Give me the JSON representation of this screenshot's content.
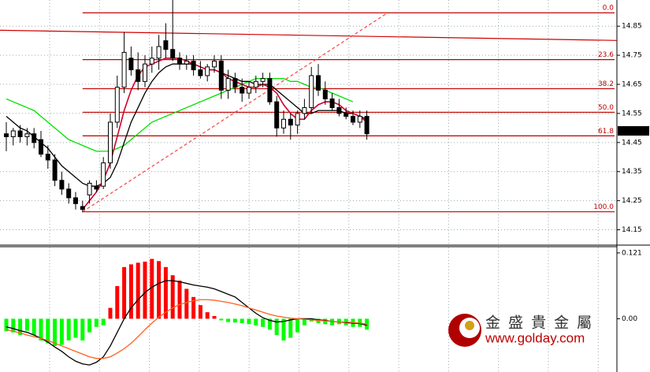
{
  "chart_data": [
    {
      "type": "candlestick",
      "ylim": [
        14.1,
        14.94
      ],
      "yticks": [
        14.15,
        14.25,
        14.35,
        14.45,
        14.55,
        14.65,
        14.75,
        14.85
      ],
      "grid": true,
      "open": [
        14.48,
        14.47,
        14.49,
        14.47,
        14.48,
        14.46,
        14.41,
        14.39,
        14.32,
        14.29,
        14.26,
        14.23,
        14.27,
        14.3,
        14.3,
        14.38,
        14.52,
        14.64,
        14.74,
        14.7,
        14.66,
        14.72,
        14.74,
        14.8,
        14.77,
        14.74,
        14.72,
        14.73,
        14.7,
        14.68,
        14.71,
        14.73,
        14.63,
        14.67,
        14.64,
        14.62,
        14.64,
        14.66,
        14.67,
        14.59,
        14.5,
        14.53,
        14.51,
        14.55,
        14.57,
        14.68,
        14.63,
        14.6,
        14.57,
        14.55,
        14.54,
        14.52,
        14.54
      ],
      "high": [
        14.52,
        14.5,
        14.51,
        14.5,
        14.5,
        14.49,
        14.44,
        14.41,
        14.35,
        14.31,
        14.28,
        14.25,
        14.32,
        14.32,
        14.4,
        14.55,
        14.68,
        14.83,
        14.78,
        14.76,
        14.75,
        14.78,
        14.82,
        14.86,
        14.94,
        14.76,
        14.75,
        14.75,
        14.73,
        14.72,
        14.75,
        14.75,
        14.7,
        14.69,
        14.67,
        14.66,
        14.68,
        14.69,
        14.69,
        14.61,
        14.56,
        14.55,
        14.56,
        14.6,
        14.71,
        14.72,
        14.66,
        14.62,
        14.6,
        14.57,
        14.56,
        14.56,
        14.56
      ],
      "low": [
        14.42,
        14.44,
        14.45,
        14.44,
        14.43,
        14.4,
        14.36,
        14.3,
        14.27,
        14.24,
        14.22,
        14.21,
        14.24,
        14.28,
        14.29,
        14.36,
        14.5,
        14.62,
        14.68,
        14.63,
        14.64,
        14.69,
        14.7,
        14.74,
        14.73,
        14.7,
        14.7,
        14.68,
        14.67,
        14.66,
        14.69,
        14.6,
        14.6,
        14.62,
        14.59,
        14.6,
        14.62,
        14.64,
        14.58,
        14.47,
        14.48,
        14.46,
        14.48,
        14.53,
        14.55,
        14.61,
        14.58,
        14.56,
        14.54,
        14.53,
        14.51,
        14.5,
        14.46
      ],
      "close": [
        14.47,
        14.49,
        14.47,
        14.48,
        14.45,
        14.41,
        14.39,
        14.32,
        14.29,
        14.26,
        14.24,
        14.22,
        14.31,
        14.29,
        14.38,
        14.52,
        14.64,
        14.76,
        14.7,
        14.66,
        14.72,
        14.74,
        14.78,
        14.77,
        14.74,
        14.72,
        14.73,
        14.7,
        14.68,
        14.71,
        14.73,
        14.63,
        14.67,
        14.64,
        14.62,
        14.64,
        14.66,
        14.67,
        14.59,
        14.5,
        14.53,
        14.51,
        14.55,
        14.57,
        14.68,
        14.63,
        14.6,
        14.57,
        14.55,
        14.54,
        14.52,
        14.54,
        14.48
      ],
      "lines": [
        {
          "color": "#00e000",
          "values": [
            14.6,
            14.59,
            14.58,
            14.57,
            14.56,
            14.54,
            14.52,
            14.5,
            14.48,
            14.46,
            14.45,
            14.44,
            14.43,
            14.42,
            14.42,
            14.42,
            14.43,
            14.44,
            14.46,
            14.48,
            14.5,
            14.52,
            14.53,
            14.54,
            14.55,
            14.56,
            14.57,
            14.58,
            14.59,
            14.6,
            14.61,
            14.62,
            14.63,
            14.64,
            14.65,
            14.66,
            14.67,
            14.67,
            14.67,
            14.67,
            14.67,
            14.66,
            14.66,
            14.65,
            14.64,
            14.64,
            14.63,
            14.62,
            14.61,
            14.6,
            14.59,
            null,
            null
          ]
        },
        {
          "color": "#000000",
          "values": [
            14.54,
            14.52,
            14.5,
            14.49,
            14.47,
            14.45,
            14.43,
            14.4,
            14.37,
            14.35,
            14.33,
            14.31,
            14.3,
            14.3,
            14.31,
            14.33,
            14.38,
            14.45,
            14.52,
            14.57,
            14.62,
            14.66,
            14.69,
            14.71,
            14.72,
            14.72,
            14.72,
            14.72,
            14.71,
            14.7,
            14.7,
            14.69,
            14.68,
            14.67,
            14.66,
            14.66,
            14.65,
            14.65,
            14.65,
            14.63,
            14.61,
            14.59,
            14.57,
            14.55,
            14.55,
            14.56,
            14.56,
            14.56,
            14.56,
            14.55,
            14.55,
            14.54,
            14.53
          ]
        },
        {
          "color": "#d0002a",
          "values": [
            null,
            null,
            null,
            null,
            null,
            null,
            null,
            null,
            null,
            null,
            null,
            14.22,
            14.25,
            14.28,
            14.32,
            14.38,
            14.47,
            14.56,
            14.63,
            14.68,
            14.71,
            14.72,
            14.73,
            14.74,
            14.74,
            14.74,
            14.73,
            14.72,
            14.71,
            14.7,
            14.7,
            14.69,
            14.67,
            14.66,
            14.65,
            14.64,
            14.64,
            14.65,
            14.64,
            14.62,
            14.58,
            14.55,
            14.53,
            14.53,
            14.56,
            14.58,
            14.59,
            14.59,
            14.58,
            14.56,
            14.55,
            14.54,
            14.52
          ]
        }
      ],
      "trendlines": [
        {
          "color": "#d00000",
          "dashed": false,
          "x": [
            -1,
            88
          ],
          "y": [
            14.836,
            14.801
          ]
        },
        {
          "color": "#ff4040",
          "dashed": true,
          "x": [
            11,
            55
          ],
          "y": [
            14.212,
            14.896
          ]
        }
      ],
      "fib_color": "#c00000",
      "fib_start": 11,
      "fib_levels": [
        {
          "label": "0.0",
          "price": 14.896
        },
        {
          "label": "23.6",
          "price": 14.735
        },
        {
          "label": "38.2",
          "price": 14.635
        },
        {
          "label": "50.0",
          "price": 14.554
        },
        {
          "label": "61.8",
          "price": 14.473
        },
        {
          "label": "100.0",
          "price": 14.212
        }
      ],
      "last_price": 14.49
    },
    {
      "type": "histogram",
      "ylim": [
        -0.095,
        0.131
      ],
      "yticks": [
        {
          "value": 0.121,
          "label": "0.121"
        },
        {
          "value": 0,
          "label": "0.00"
        }
      ],
      "positive_color": "#ff0000",
      "negative_color": "#00ff00",
      "values": [
        -0.023,
        -0.025,
        -0.03,
        -0.022,
        -0.03,
        -0.04,
        -0.045,
        -0.05,
        -0.048,
        -0.04,
        -0.035,
        -0.04,
        -0.025,
        -0.015,
        -0.012,
        0.02,
        0.06,
        0.095,
        0.1,
        0.103,
        0.105,
        0.11,
        0.106,
        0.095,
        0.08,
        0.07,
        0.055,
        0.04,
        0.025,
        0.012,
        0.005,
        -0.003,
        -0.006,
        -0.007,
        -0.008,
        -0.01,
        -0.012,
        -0.015,
        -0.02,
        -0.03,
        -0.04,
        -0.035,
        -0.025,
        -0.012,
        -0.005,
        -0.008,
        -0.01,
        -0.012,
        -0.01,
        -0.012,
        -0.015,
        -0.015,
        -0.02
      ],
      "lines": [
        {
          "color": "#000000",
          "values": [
            -0.015,
            -0.018,
            -0.022,
            -0.025,
            -0.03,
            -0.036,
            -0.043,
            -0.052,
            -0.06,
            -0.07,
            -0.078,
            -0.083,
            -0.085,
            -0.08,
            -0.07,
            -0.05,
            -0.025,
            0.0,
            0.02,
            0.035,
            0.048,
            0.058,
            0.065,
            0.07,
            0.07,
            0.068,
            0.065,
            0.062,
            0.06,
            0.058,
            0.055,
            0.05,
            0.045,
            0.04,
            0.03,
            0.02,
            0.01,
            0.002,
            -0.003,
            -0.006,
            -0.005,
            -0.002,
            0.0,
            0.0,
            0.0,
            -0.002,
            -0.003,
            -0.005,
            -0.006,
            -0.007,
            -0.008,
            -0.009,
            -0.012
          ]
        },
        {
          "color": "#ff6020",
          "values": [
            -0.02,
            -0.023,
            -0.026,
            -0.03,
            -0.033,
            -0.036,
            -0.04,
            -0.045,
            -0.05,
            -0.055,
            -0.06,
            -0.065,
            -0.07,
            -0.073,
            -0.073,
            -0.07,
            -0.063,
            -0.055,
            -0.045,
            -0.033,
            -0.02,
            -0.008,
            0.003,
            0.012,
            0.02,
            0.026,
            0.03,
            0.033,
            0.035,
            0.035,
            0.034,
            0.032,
            0.03,
            0.027,
            0.024,
            0.02,
            0.016,
            0.012,
            0.008,
            0.005,
            0.003,
            0.001,
            0.0,
            -0.001,
            -0.002,
            -0.003,
            -0.004,
            -0.005,
            -0.006,
            -0.006,
            -0.007,
            -0.008,
            -0.01
          ]
        }
      ]
    }
  ],
  "watermark": {
    "name": "金 盛 貴 金 屬",
    "url": "www.golday.com"
  }
}
